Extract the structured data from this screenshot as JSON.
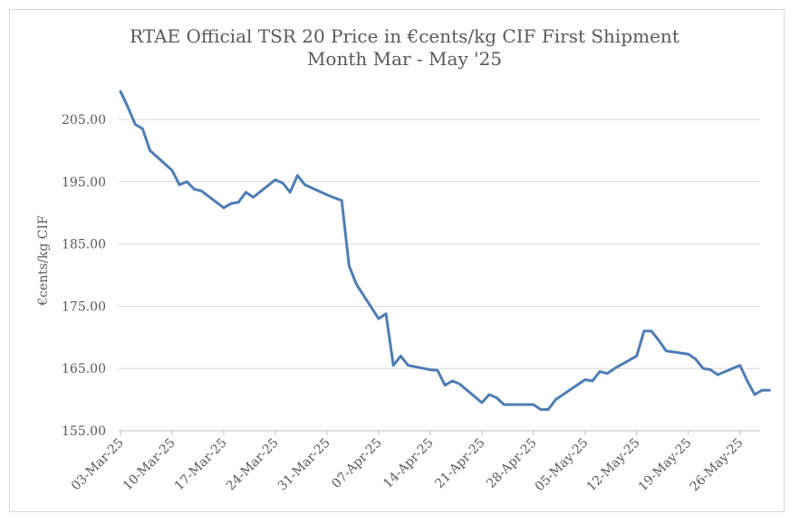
{
  "chart_data": {
    "type": "line",
    "title": "RTAE Official TSR 20 Price in €cents/kg CIF First Shipment",
    "subtitle": "Month Mar - May '25",
    "xlabel": "",
    "ylabel": "€cents/kg CIF",
    "ylim": [
      155,
      210
    ],
    "yticks": [
      "155.00",
      "165.00",
      "175.00",
      "185.00",
      "195.00",
      "205.00"
    ],
    "ytick_values": [
      155,
      165,
      175,
      185,
      195,
      205
    ],
    "xticks": [
      "03-Mar-25",
      "10-Mar-25",
      "17-Mar-25",
      "24-Mar-25",
      "31-Mar-25",
      "07-Apr-25",
      "14-Apr-25",
      "21-Apr-25",
      "28-Apr-25",
      "05-May-25",
      "12-May-25",
      "19-May-25",
      "26-May-25"
    ],
    "grid": true,
    "color": "#4f7db3",
    "series": [
      {
        "x": [
          "2025-03-03",
          "2025-03-04",
          "2025-03-05",
          "2025-03-06",
          "2025-03-07",
          "2025-03-10",
          "2025-03-11",
          "2025-03-12",
          "2025-03-13",
          "2025-03-14",
          "2025-03-17",
          "2025-03-18",
          "2025-03-19",
          "2025-03-20",
          "2025-03-21",
          "2025-03-24",
          "2025-03-25",
          "2025-03-26",
          "2025-03-27",
          "2025-03-28",
          "2025-03-31",
          "2025-04-01",
          "2025-04-02",
          "2025-04-03",
          "2025-04-04",
          "2025-04-07",
          "2025-04-08",
          "2025-04-09",
          "2025-04-10",
          "2025-04-11",
          "2025-04-14",
          "2025-04-15",
          "2025-04-16",
          "2025-04-17",
          "2025-04-18",
          "2025-04-21",
          "2025-04-22",
          "2025-04-23",
          "2025-04-24",
          "2025-04-25",
          "2025-04-28",
          "2025-04-29",
          "2025-04-30",
          "2025-05-01",
          "2025-05-02",
          "2025-05-05",
          "2025-05-06",
          "2025-05-07",
          "2025-05-08",
          "2025-05-09",
          "2025-05-12",
          "2025-05-13",
          "2025-05-14",
          "2025-05-15",
          "2025-05-16",
          "2025-05-19",
          "2025-05-20",
          "2025-05-21",
          "2025-05-22",
          "2025-05-23",
          "2025-05-26",
          "2025-05-27",
          "2025-05-28",
          "2025-05-29",
          "2025-05-30"
        ],
        "values": [
          209.5,
          207.0,
          204.2,
          203.5,
          200.0,
          196.8,
          194.5,
          195.0,
          193.8,
          193.5,
          190.8,
          191.5,
          191.7,
          193.3,
          192.5,
          195.3,
          194.8,
          193.3,
          196.0,
          194.5,
          192.9,
          192.4,
          192.0,
          181.5,
          178.5,
          173.0,
          173.8,
          165.5,
          167.0,
          165.5,
          164.8,
          164.7,
          162.3,
          163.0,
          162.5,
          159.5,
          160.8,
          160.3,
          159.2,
          159.2,
          159.2,
          158.4,
          158.4,
          160.0,
          160.8,
          163.2,
          163.0,
          164.5,
          164.2,
          165.0,
          167.0,
          171.0,
          171.0,
          169.5,
          167.8,
          167.3,
          166.5,
          165.0,
          164.8,
          164.0,
          165.5,
          163.0,
          160.8,
          161.5,
          161.5
        ]
      }
    ]
  }
}
